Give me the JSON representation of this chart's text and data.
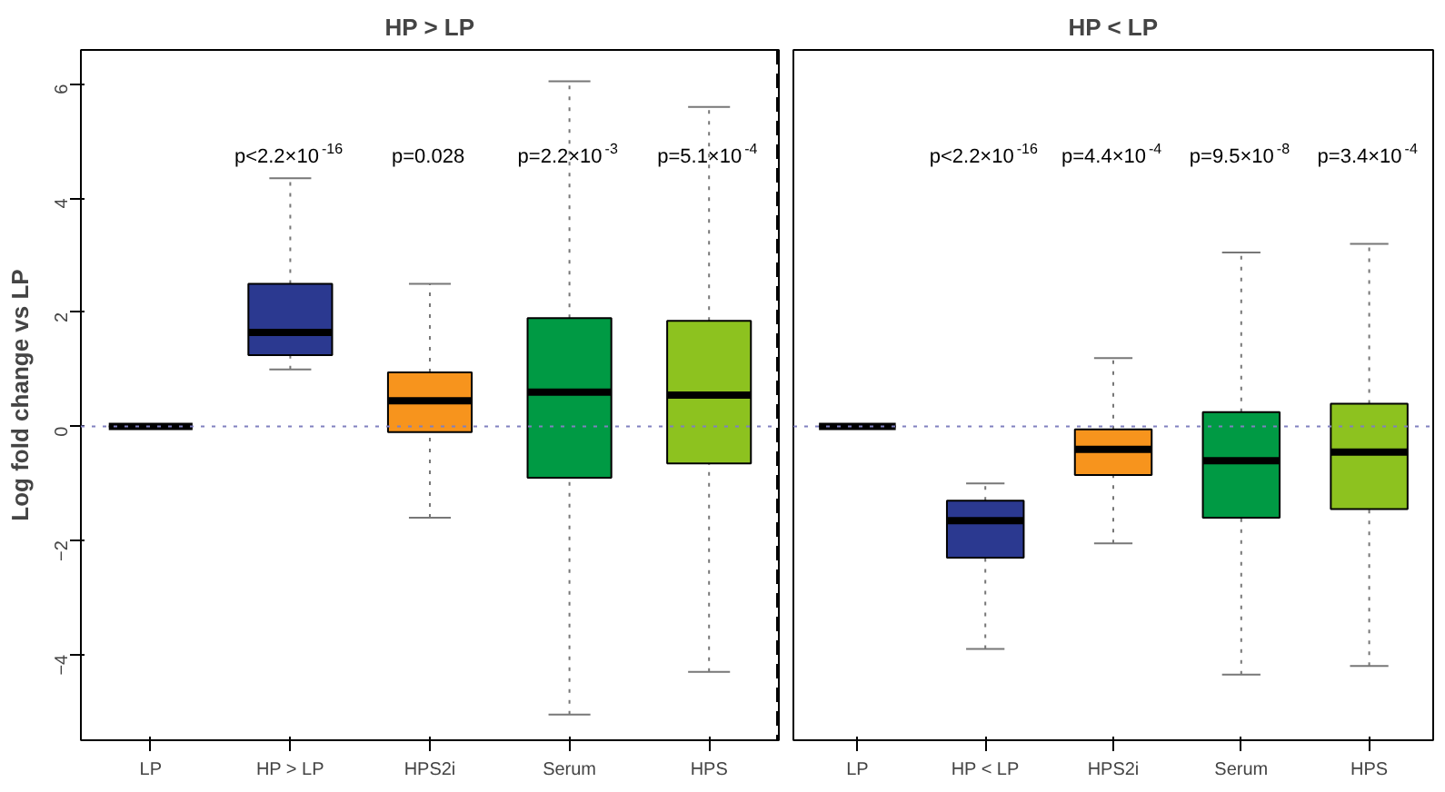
{
  "chart_data": [
    {
      "type": "box",
      "title": "HP > LP",
      "ylabel": "Log fold change vs LP",
      "categories": [
        "LP",
        "HP > LP",
        "HPS2i",
        "Serum",
        "HPS"
      ],
      "colors": [
        "#000000",
        "#2b3990",
        "#f7941d",
        "#009a44",
        "#8dc21f"
      ],
      "boxes": [
        {
          "low": 0,
          "q1": 0,
          "median": 0,
          "q3": 0,
          "high": 0
        },
        {
          "low": 1.0,
          "q1": 1.25,
          "median": 1.65,
          "q3": 2.5,
          "high": 4.35
        },
        {
          "low": -1.6,
          "q1": -0.1,
          "median": 0.45,
          "q3": 0.95,
          "high": 2.5
        },
        {
          "low": -5.05,
          "q1": -0.9,
          "median": 0.6,
          "q3": 1.9,
          "high": 6.05
        },
        {
          "low": -4.3,
          "q1": -0.65,
          "median": 0.55,
          "q3": 1.85,
          "high": 5.6
        }
      ],
      "ylim": [
        -5.5,
        6.6
      ],
      "yticks": [
        -4,
        -2,
        0,
        2,
        4,
        6
      ],
      "grid": false,
      "ref_lines": [
        {
          "axis": "y",
          "value": 0,
          "color": "#8080c0",
          "line_style": "dotted"
        }
      ],
      "annotations": [
        "p<2.2×10$^{-16}$",
        "p=0.028",
        "p=2.2×10$^{-3}$",
        "p=5.1×10$^{-4}$"
      ]
    },
    {
      "type": "box",
      "title": "HP < LP",
      "categories": [
        "LP",
        "HP < LP",
        "HPS2i",
        "Serum",
        "HPS"
      ],
      "colors": [
        "#000000",
        "#2b3990",
        "#f7941d",
        "#009a44",
        "#8dc21f"
      ],
      "boxes": [
        {
          "low": 0,
          "q1": 0,
          "median": 0,
          "q3": 0,
          "high": 0
        },
        {
          "low": -3.9,
          "q1": -2.3,
          "median": -1.65,
          "q3": -1.3,
          "high": -1.0
        },
        {
          "low": -2.05,
          "q1": -0.85,
          "median": -0.4,
          "q3": -0.05,
          "high": 1.2
        },
        {
          "low": -4.35,
          "q1": -1.6,
          "median": -0.6,
          "q3": 0.25,
          "high": 3.05
        },
        {
          "low": -4.2,
          "q1": -1.45,
          "median": -0.45,
          "q3": 0.4,
          "high": 3.2
        }
      ],
      "ylim": [
        -5.5,
        6.6
      ],
      "tick_labels": "x",
      "grid": false,
      "ref_lines": [
        {
          "axis": "y",
          "value": 0,
          "color": "#8080c0",
          "line_style": "dotted"
        }
      ],
      "annotations": [
        "p<2.2×10$^{-16}$",
        "p=4.4×10$^{-4}$",
        "p=9.5×10$^{-8}$",
        "p=3.4×10$^{-4}$"
      ]
    }
  ]
}
